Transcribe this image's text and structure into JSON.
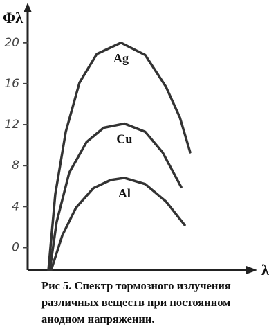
{
  "chart_data": {
    "type": "line",
    "ylabel": "Φλ",
    "xlabel": "λ",
    "caption": [
      "Рис 5. Спектр тормозного излучения",
      "различных веществ при постоянном",
      "анодном напряжении."
    ],
    "xlim": [
      0,
      100
    ],
    "ylim": [
      -2.2,
      23.5
    ],
    "yticks": [
      0,
      4,
      8,
      12,
      16,
      20
    ],
    "series": [
      {
        "name": "Ag",
        "color": "#333333",
        "x": [
          9.1,
          12.1,
          16.7,
          22.7,
          30.3,
          40.9,
          51.5,
          60.6,
          66.7,
          71.2
        ],
        "values": [
          -2.2,
          5.2,
          11.3,
          16.1,
          18.9,
          20,
          18.8,
          15.7,
          12.7,
          9.3
        ]
      },
      {
        "name": "Cu",
        "color": "#333333",
        "x": [
          9.7,
          12.7,
          18.2,
          25.8,
          33.3,
          42.4,
          51.5,
          59.1,
          67.3
        ],
        "values": [
          -2.2,
          2.5,
          7.3,
          10.3,
          11.7,
          12.1,
          11.3,
          9.3,
          5.9
        ]
      },
      {
        "name": "Al",
        "color": "#333333",
        "x": [
          10.3,
          15.2,
          21.2,
          28.8,
          36.4,
          42.4,
          51.5,
          60.6,
          68.8
        ],
        "values": [
          -2.2,
          1.2,
          3.9,
          5.8,
          6.6,
          6.8,
          6.2,
          4.5,
          2.2
        ]
      }
    ]
  }
}
